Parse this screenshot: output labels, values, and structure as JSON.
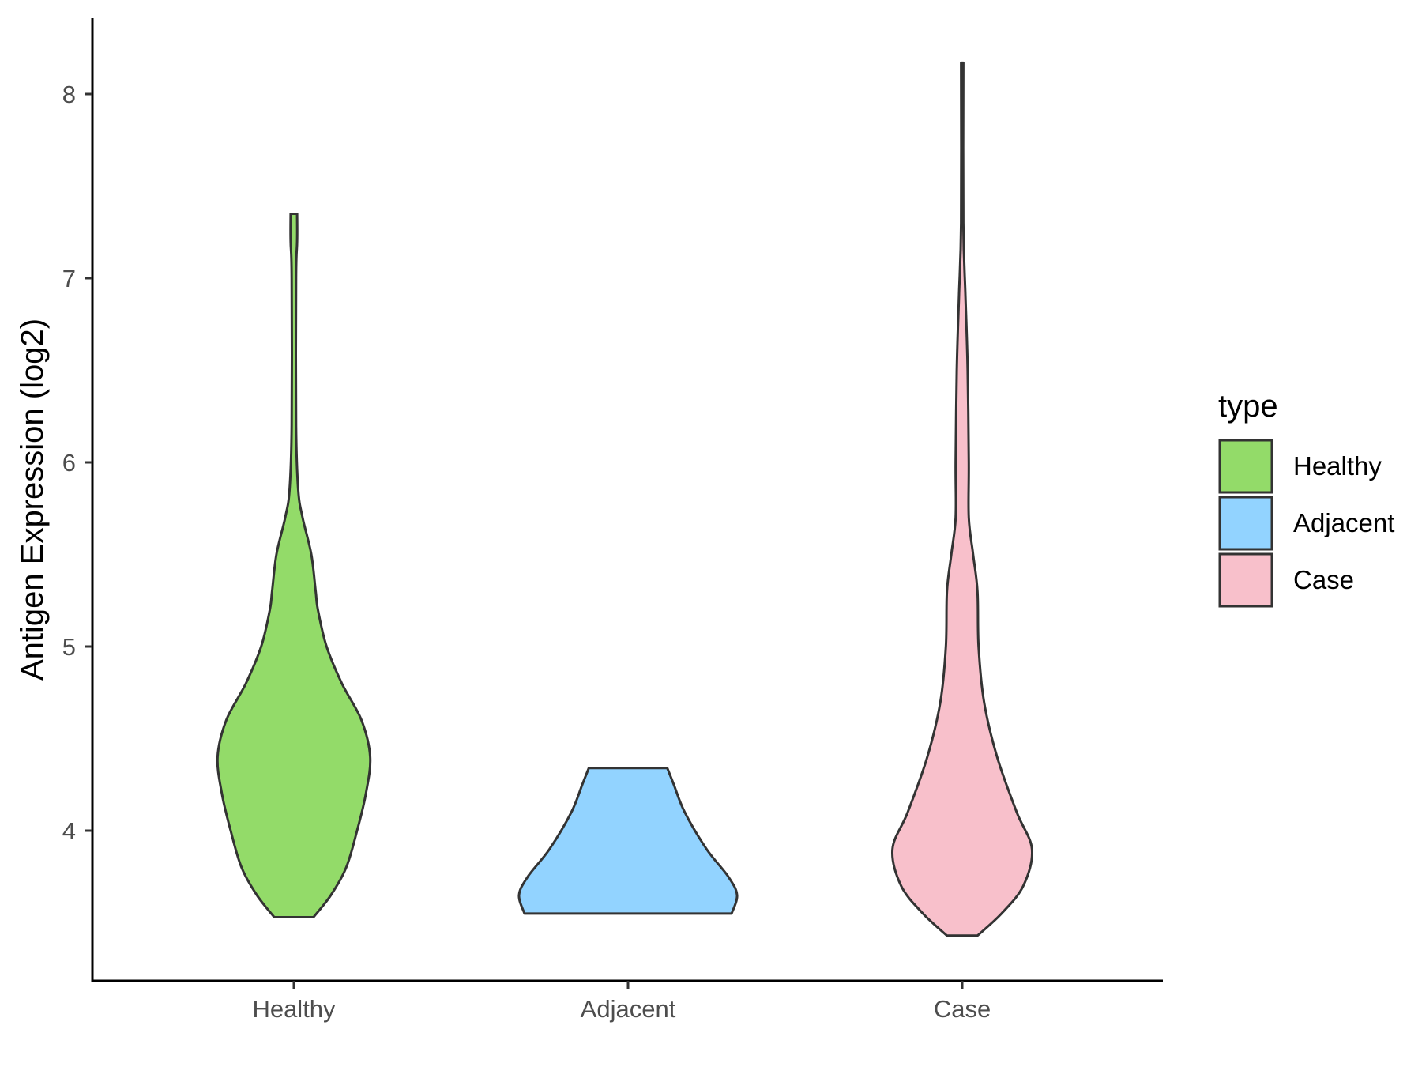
{
  "chart_data": {
    "type": "violin",
    "title": "",
    "xlabel": "",
    "ylabel": "Antigen Expression (log2)",
    "ylim": [
      3.2,
      8.4
    ],
    "yticks": [
      4,
      5,
      6,
      7,
      8
    ],
    "grid": false,
    "categories": [
      "Healthy",
      "Adjacent",
      "Case"
    ],
    "colors": {
      "Healthy": "#93db69",
      "Adjacent": "#92d3ff",
      "Case": "#f8c0cb",
      "outline": "#333333"
    },
    "series": [
      {
        "name": "Healthy",
        "min": 3.53,
        "max": 7.35,
        "profile": [
          [
            3.53,
            0.18
          ],
          [
            3.65,
            0.34
          ],
          [
            3.8,
            0.48
          ],
          [
            4.0,
            0.58
          ],
          [
            4.2,
            0.66
          ],
          [
            4.4,
            0.7
          ],
          [
            4.6,
            0.62
          ],
          [
            4.8,
            0.44
          ],
          [
            5.0,
            0.3
          ],
          [
            5.2,
            0.22
          ],
          [
            5.3,
            0.2
          ],
          [
            5.5,
            0.16
          ],
          [
            5.7,
            0.08
          ],
          [
            5.85,
            0.04
          ],
          [
            6.2,
            0.02
          ],
          [
            7.0,
            0.02
          ],
          [
            7.2,
            0.03
          ],
          [
            7.35,
            0.03
          ]
        ]
      },
      {
        "name": "Adjacent",
        "min": 3.55,
        "max": 4.34,
        "profile": [
          [
            3.55,
            0.95
          ],
          [
            3.65,
            1.0
          ],
          [
            3.75,
            0.92
          ],
          [
            3.9,
            0.72
          ],
          [
            4.1,
            0.52
          ],
          [
            4.25,
            0.42
          ],
          [
            4.34,
            0.36
          ]
        ]
      },
      {
        "name": "Case",
        "min": 3.43,
        "max": 8.17,
        "profile": [
          [
            3.43,
            0.14
          ],
          [
            3.55,
            0.36
          ],
          [
            3.7,
            0.56
          ],
          [
            3.9,
            0.64
          ],
          [
            4.1,
            0.5
          ],
          [
            4.4,
            0.32
          ],
          [
            4.7,
            0.2
          ],
          [
            5.0,
            0.15
          ],
          [
            5.3,
            0.14
          ],
          [
            5.5,
            0.1
          ],
          [
            5.7,
            0.06
          ],
          [
            6.0,
            0.06
          ],
          [
            6.5,
            0.05
          ],
          [
            6.9,
            0.03
          ],
          [
            7.3,
            0.01
          ],
          [
            8.17,
            0.01
          ]
        ]
      }
    ]
  },
  "legend": {
    "title": "type",
    "items": [
      {
        "label": "Healthy",
        "color": "#93db69"
      },
      {
        "label": "Adjacent",
        "color": "#92d3ff"
      },
      {
        "label": "Case",
        "color": "#f8c0cb"
      }
    ]
  }
}
